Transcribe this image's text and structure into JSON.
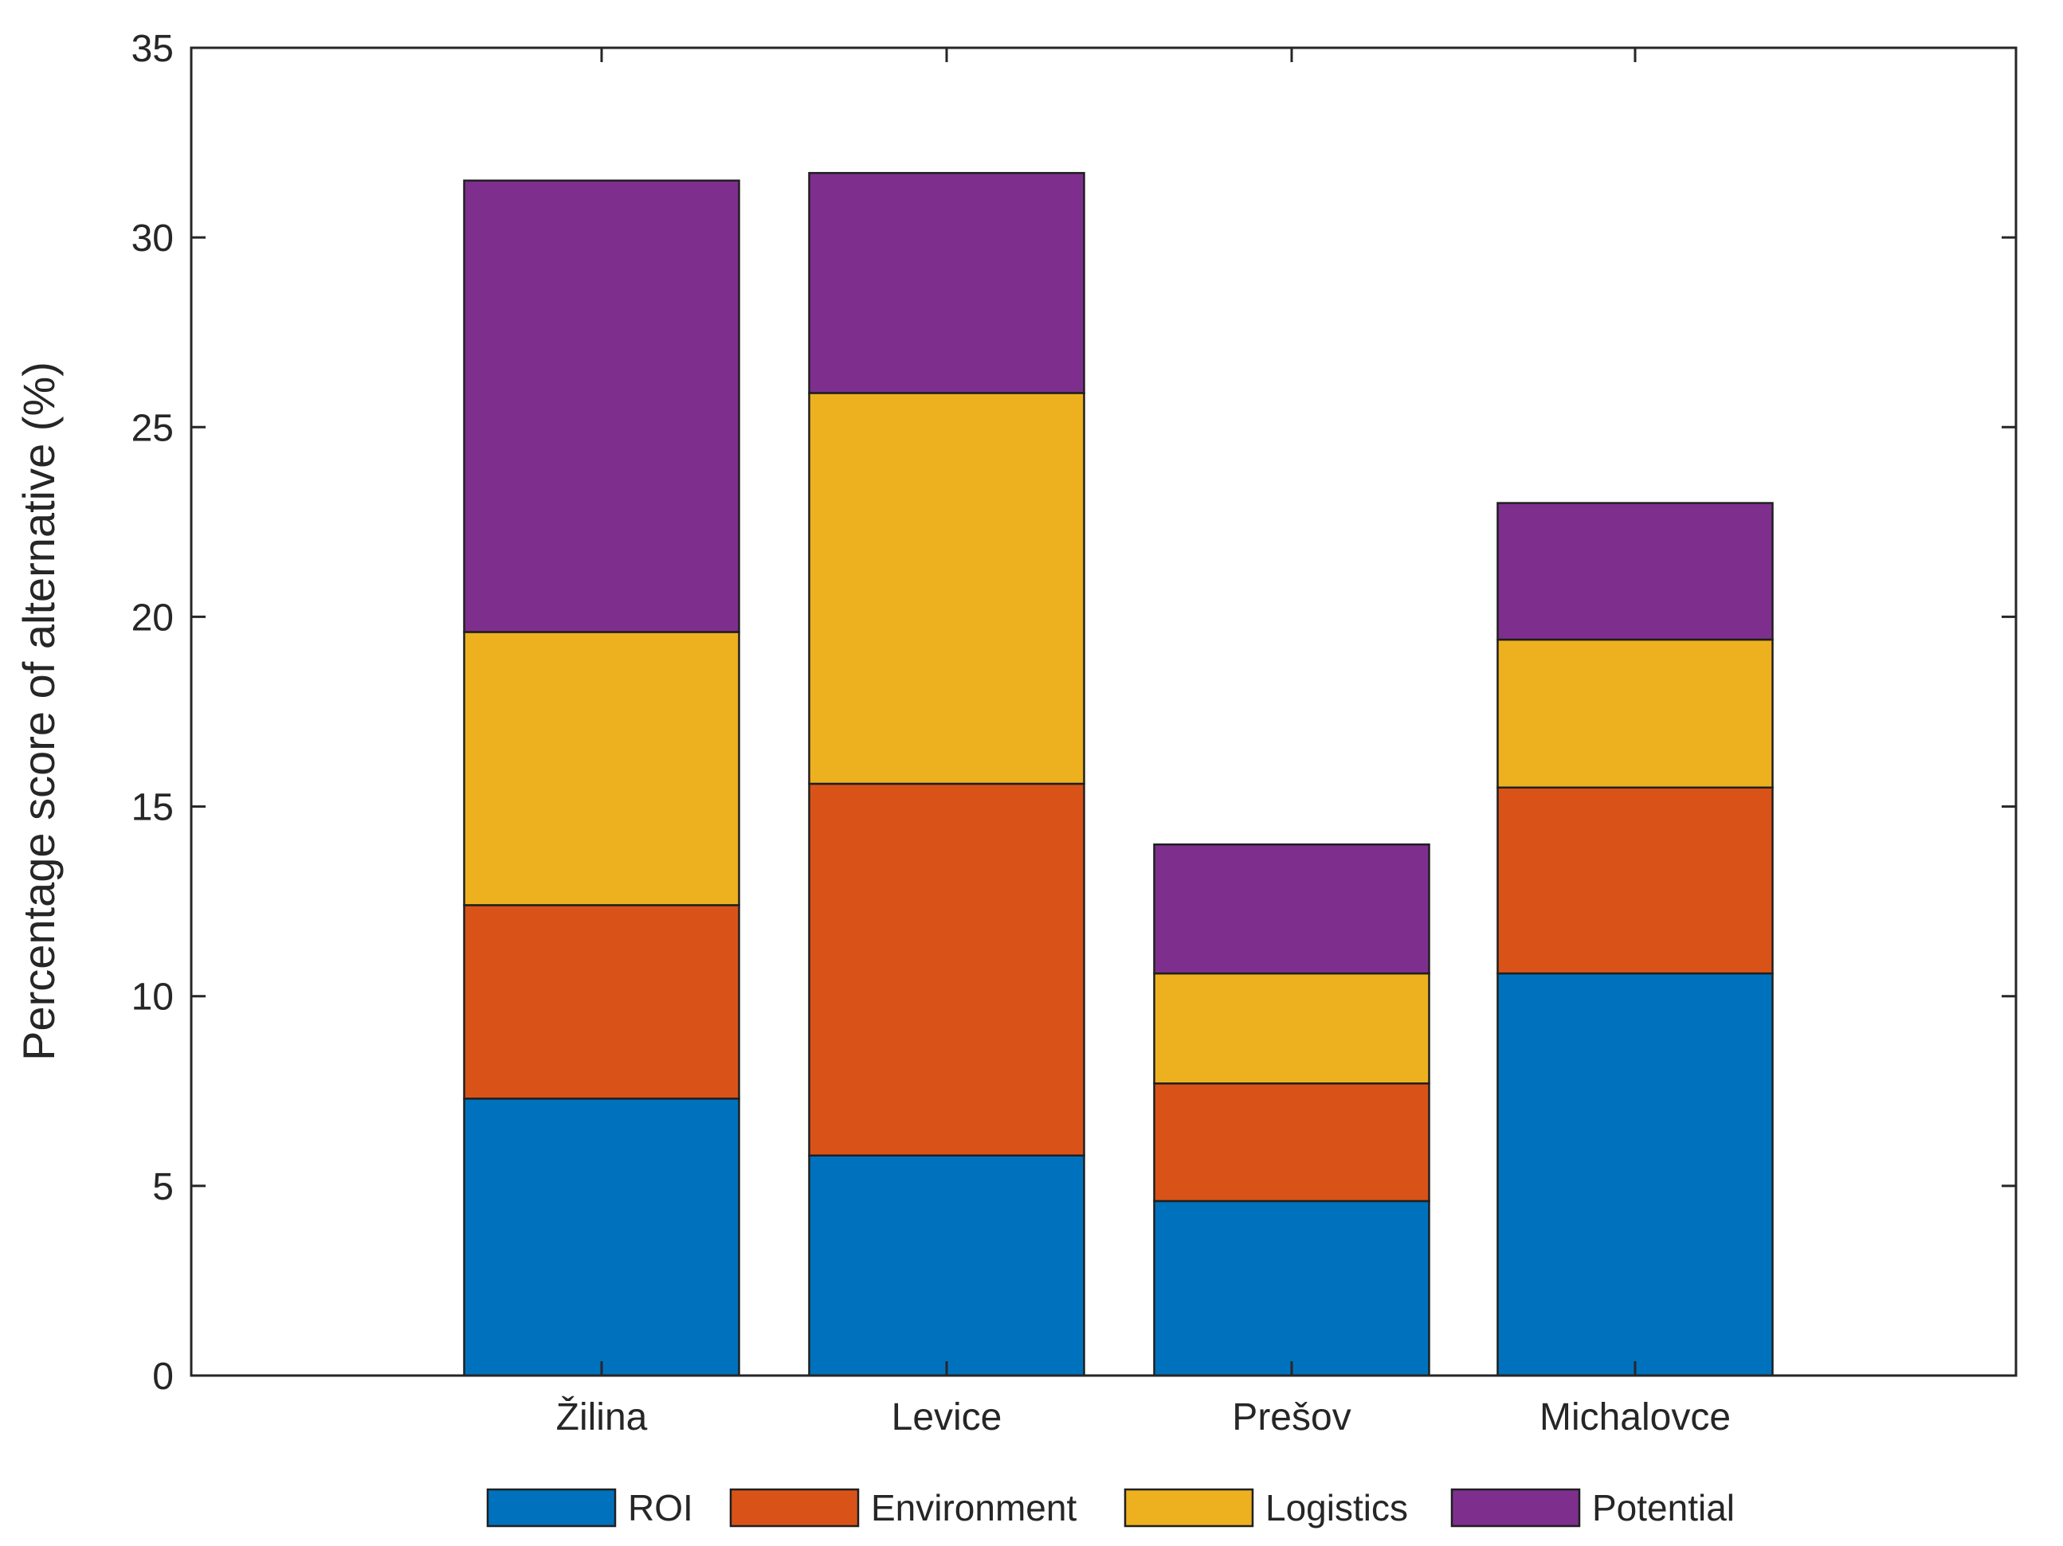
{
  "chart_data": {
    "type": "bar",
    "stacked": true,
    "title": "",
    "xlabel": "",
    "ylabel": "Percentage score of alternative (%)",
    "ylim": [
      0,
      35
    ],
    "yticks": [
      0,
      5,
      10,
      15,
      20,
      25,
      30,
      35
    ],
    "grid": false,
    "legend_position": "bottom",
    "categories": [
      "Žilina",
      "Levice",
      "Prešov",
      "Michalovce"
    ],
    "series": [
      {
        "name": "ROI",
        "color": "#0072BD",
        "values": [
          7.3,
          5.8,
          4.6,
          10.6
        ]
      },
      {
        "name": "Environment",
        "color": "#D95319",
        "values": [
          5.1,
          9.8,
          3.1,
          4.9
        ]
      },
      {
        "name": "Logistics",
        "color": "#EDB120",
        "values": [
          7.2,
          10.3,
          2.9,
          3.9
        ]
      },
      {
        "name": "Potential",
        "color": "#7E2F8E",
        "values": [
          11.9,
          5.8,
          3.4,
          3.6
        ]
      }
    ]
  }
}
